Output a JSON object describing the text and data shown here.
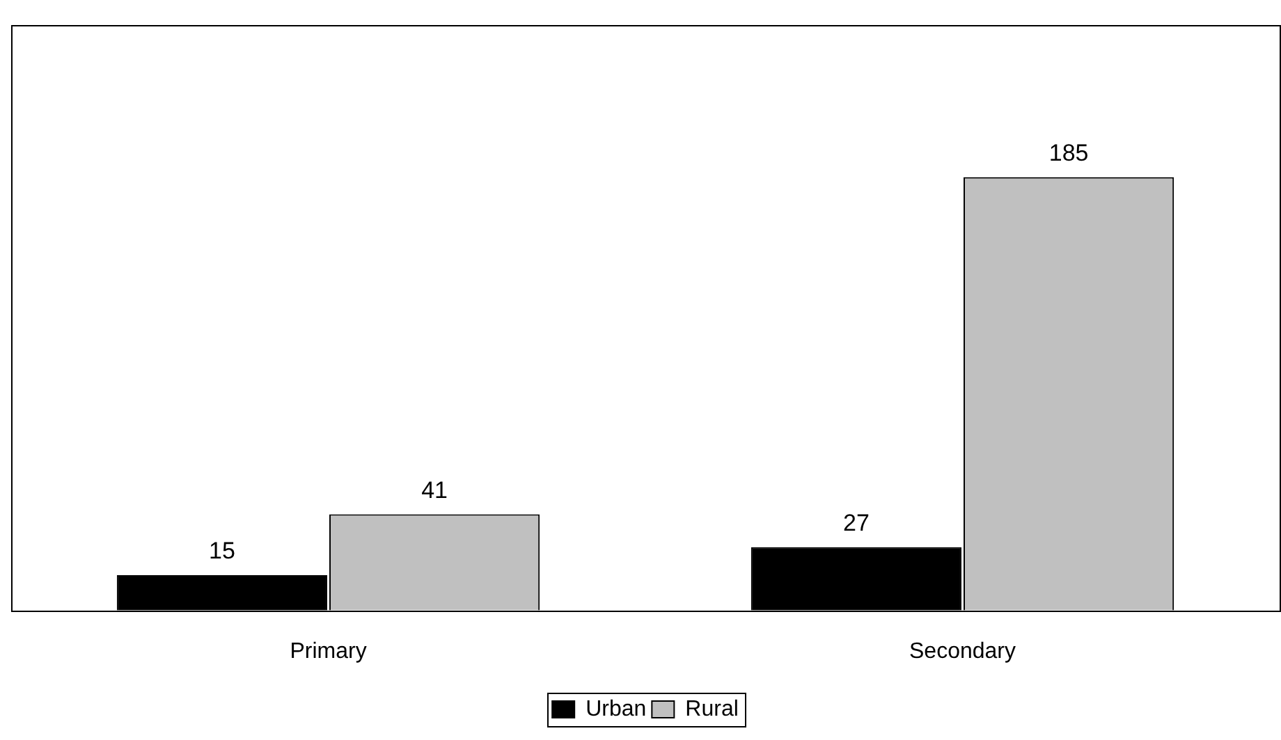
{
  "chart_data": {
    "type": "bar",
    "categories": [
      "Primary",
      "Secondary"
    ],
    "series": [
      {
        "name": "Urban",
        "color": "#000000",
        "values": [
          15,
          27
        ]
      },
      {
        "name": "Rural",
        "color": "#c0c0c0",
        "values": [
          41,
          185
        ]
      }
    ],
    "data_labels": true,
    "grid": false,
    "legend": "bottom"
  }
}
